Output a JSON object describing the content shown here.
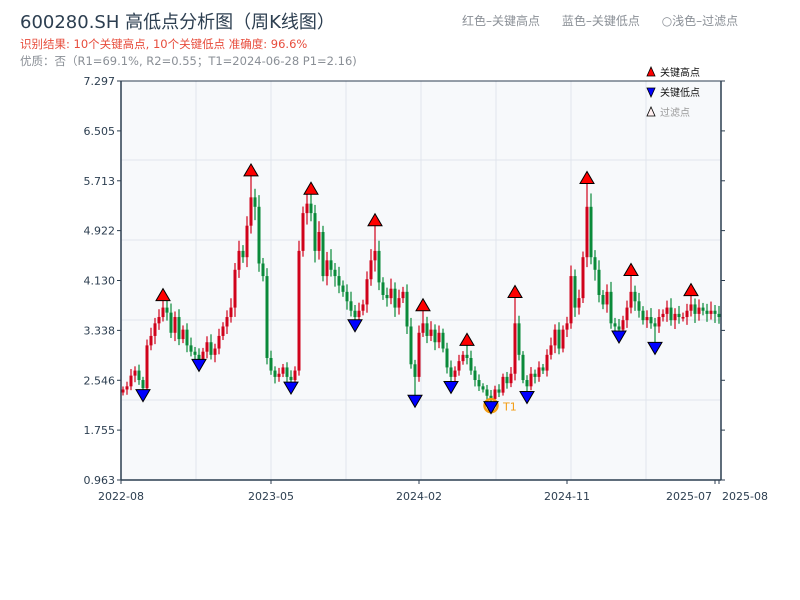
{
  "header": {
    "title": "600280.SH 高低点分析图（周K线图）",
    "result": "识别结果: 10个关键高点, 10个关键低点   准确度: 96.6%",
    "quality": "优质：否（R1=69.1%, R2=0.55；T1=2024-06-28 P1=2.16)",
    "legend_top": [
      "红色–关键高点",
      "蓝色–关键低点",
      "○浅色–过滤点"
    ]
  },
  "colors": {
    "up": "#d0021b",
    "down": "#0a8a3a",
    "high_marker": "#ff0000",
    "low_marker": "#0000ff",
    "t1": "#f39c12",
    "axis": "#2c3e50",
    "grid": "#e1e5ec",
    "plot_bg": "#f7f9fb"
  },
  "chart_data": {
    "type": "candlestick",
    "title": "600280.SH 高低点分析图（周K线图）",
    "ylim": [
      0.963,
      7.297
    ],
    "y_ticks": [
      "0.963",
      "1.755",
      "2.546",
      "3.338",
      "4.130",
      "4.922",
      "5.713",
      "6.505",
      "7.297"
    ],
    "x_ticks": [
      {
        "label": "2022-08",
        "index": 0
      },
      {
        "label": "2023-05",
        "index": 37
      },
      {
        "label": "2024-02",
        "index": 74
      },
      {
        "label": "2024-11",
        "index": 111
      },
      {
        "label": "2025-07",
        "index": 148
      },
      {
        "label": "2025-08",
        "index": 149
      }
    ],
    "legend": [
      "关键高点",
      "关键低点",
      "过滤点"
    ],
    "legend_position": "top-right",
    "close": [
      2.4,
      2.45,
      2.62,
      2.7,
      2.55,
      2.42,
      3.1,
      3.25,
      3.45,
      3.55,
      3.7,
      3.62,
      3.3,
      3.55,
      3.2,
      3.35,
      3.1,
      3.0,
      2.95,
      2.88,
      3.0,
      3.15,
      2.95,
      3.05,
      3.25,
      3.4,
      3.55,
      3.7,
      4.3,
      4.6,
      4.5,
      5.0,
      5.45,
      5.3,
      4.4,
      4.2,
      2.9,
      2.7,
      2.6,
      2.65,
      2.75,
      2.6,
      2.55,
      2.7,
      4.6,
      5.2,
      5.35,
      5.2,
      4.6,
      4.9,
      4.2,
      4.45,
      4.3,
      4.2,
      4.05,
      3.95,
      3.8,
      3.65,
      3.55,
      3.65,
      3.75,
      4.15,
      4.45,
      4.6,
      4.1,
      3.9,
      3.85,
      4.0,
      3.7,
      3.85,
      3.95,
      3.4,
      2.8,
      2.6,
      3.3,
      3.45,
      3.25,
      3.35,
      3.15,
      3.3,
      3.05,
      2.75,
      2.6,
      2.7,
      2.85,
      2.95,
      2.9,
      2.7,
      2.55,
      2.45,
      2.4,
      2.3,
      2.25,
      2.4,
      2.35,
      2.6,
      2.5,
      2.65,
      3.45,
      2.95,
      2.55,
      2.45,
      2.65,
      2.6,
      2.75,
      2.7,
      2.95,
      3.1,
      3.35,
      3.05,
      3.35,
      3.45,
      4.2,
      3.7,
      3.85,
      4.5,
      5.3,
      4.5,
      4.3,
      3.9,
      3.75,
      3.95,
      3.45,
      3.4,
      3.35,
      3.5,
      3.7,
      3.95,
      3.8,
      3.65,
      3.5,
      3.55,
      3.45,
      3.4,
      3.55,
      3.6,
      3.7,
      3.5,
      3.6,
      3.55,
      3.55,
      3.65,
      3.75,
      3.6,
      3.7,
      3.65,
      3.6,
      3.65,
      3.6,
      3.55
    ],
    "key_highs": [
      {
        "index": 10,
        "price": 3.81
      },
      {
        "index": 32,
        "price": 5.79
      },
      {
        "index": 47,
        "price": 5.5
      },
      {
        "index": 63,
        "price": 5.0
      },
      {
        "index": 75,
        "price": 3.65
      },
      {
        "index": 86,
        "price": 3.1
      },
      {
        "index": 98,
        "price": 3.86
      },
      {
        "index": 116,
        "price": 5.67
      },
      {
        "index": 127,
        "price": 4.21
      },
      {
        "index": 142,
        "price": 3.89
      }
    ],
    "key_lows": [
      {
        "index": 5,
        "price": 2.35
      },
      {
        "index": 19,
        "price": 2.83
      },
      {
        "index": 42,
        "price": 2.47
      },
      {
        "index": 58,
        "price": 3.46
      },
      {
        "index": 73,
        "price": 2.26
      },
      {
        "index": 82,
        "price": 2.48
      },
      {
        "index": 92,
        "price": 2.16
      },
      {
        "index": 101,
        "price": 2.32
      },
      {
        "index": 124,
        "price": 3.28
      },
      {
        "index": 133,
        "price": 3.1
      }
    ],
    "t1": {
      "label": "T1",
      "index": 92,
      "price": 2.16
    }
  }
}
